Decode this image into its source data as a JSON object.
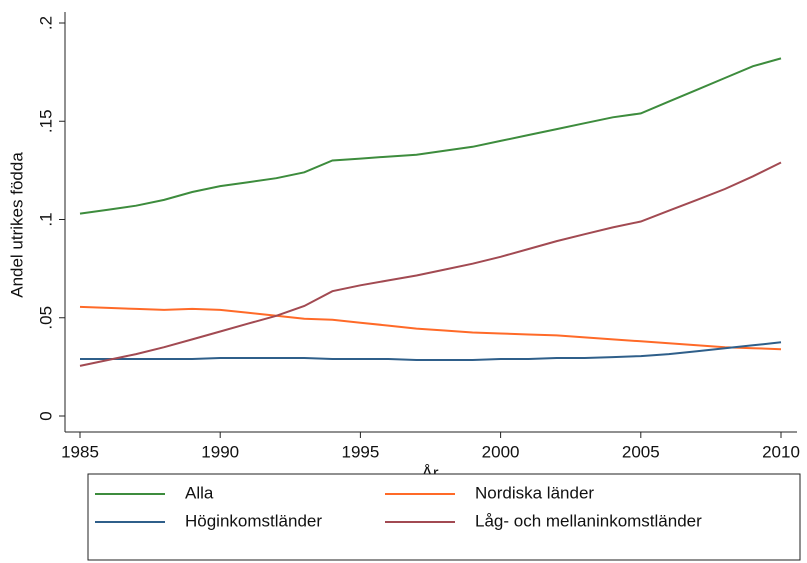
{
  "chart_data": {
    "type": "line",
    "x_label": "År",
    "y_label": "Andel utrikes födda",
    "x": [
      1985,
      1986,
      1987,
      1988,
      1989,
      1990,
      1991,
      1992,
      1993,
      1994,
      1995,
      1996,
      1997,
      1998,
      1999,
      2000,
      2001,
      2002,
      2003,
      2004,
      2005,
      2006,
      2007,
      2008,
      2009,
      2010
    ],
    "series": [
      {
        "name": "Alla",
        "color": "#3d8c3d",
        "values": [
          0.103,
          0.105,
          0.107,
          0.11,
          0.114,
          0.117,
          0.119,
          0.121,
          0.124,
          0.13,
          0.131,
          0.132,
          0.133,
          0.135,
          0.137,
          0.14,
          0.143,
          0.146,
          0.149,
          0.152,
          0.154,
          0.16,
          0.166,
          0.172,
          0.178,
          0.182
        ]
      },
      {
        "name": "Nordiska länder",
        "color": "#ff6a28",
        "values": [
          0.0555,
          0.055,
          0.0545,
          0.054,
          0.0545,
          0.054,
          0.0525,
          0.051,
          0.0495,
          0.049,
          0.0475,
          0.046,
          0.0445,
          0.0435,
          0.0425,
          0.042,
          0.0415,
          0.041,
          0.04,
          0.039,
          0.038,
          0.037,
          0.036,
          0.035,
          0.0345,
          0.034
        ]
      },
      {
        "name": "Höginkomstländer",
        "color": "#2f5f8a",
        "values": [
          0.029,
          0.029,
          0.029,
          0.029,
          0.029,
          0.0295,
          0.0295,
          0.0295,
          0.0295,
          0.029,
          0.029,
          0.029,
          0.0285,
          0.0285,
          0.0285,
          0.029,
          0.029,
          0.0295,
          0.0295,
          0.03,
          0.0305,
          0.0315,
          0.033,
          0.0345,
          0.036,
          0.0375
        ]
      },
      {
        "name": "Låg- och mellaninkomstländer",
        "color": "#a24a52",
        "values": [
          0.0255,
          0.0285,
          0.0315,
          0.035,
          0.039,
          0.043,
          0.047,
          0.051,
          0.056,
          0.0635,
          0.0665,
          0.069,
          0.0715,
          0.0745,
          0.0775,
          0.081,
          0.085,
          0.089,
          0.0925,
          0.096,
          0.099,
          0.1045,
          0.11,
          0.1155,
          0.122,
          0.129
        ]
      }
    ],
    "xlim": [
      1985,
      2010
    ],
    "xticks": [
      1985,
      1990,
      1995,
      2000,
      2005,
      2010
    ],
    "ylim": [
      0,
      {
        "value": 0.2,
        "label": ".2"
      }
    ],
    "yticks": [
      0,
      {
        "value": 0.05,
        "label": ".05"
      },
      {
        "value": 0.1,
        "label": ".1"
      },
      {
        "value": 0.15,
        "label": ".15"
      },
      {
        "value": 0.2,
        "label": ".2"
      }
    ],
    "legend": "bottom"
  }
}
